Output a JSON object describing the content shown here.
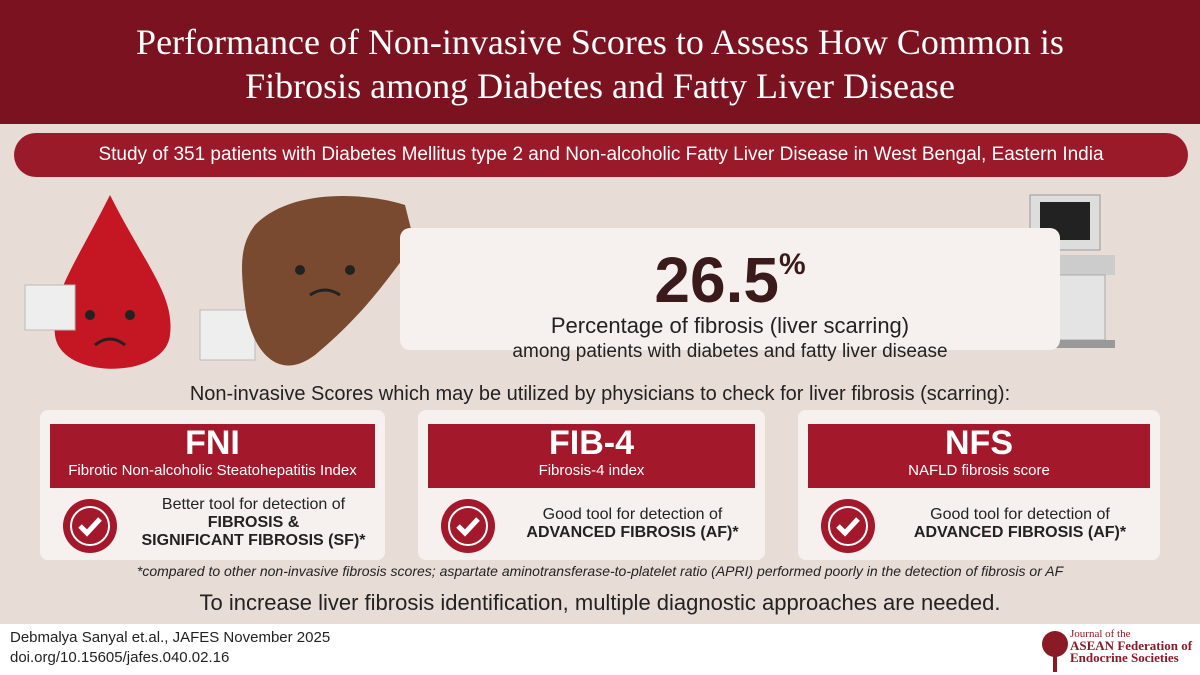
{
  "header": {
    "title_lines": [
      "Performance of Non-invasive Scores to Assess How Common is",
      "Fibrosis among Diabetes and Fatty Liver Disease"
    ]
  },
  "banner": "Study of 351 patients with Diabetes Mellitus type 2 and Non-alcoholic Fatty Liver Disease in West Bengal, Eastern India",
  "stat": {
    "value": "26.5",
    "unit": "%",
    "label": "Percentage of fibrosis (liver scarring)",
    "sublabel": "among patients with diabetes and fatty liver disease"
  },
  "scores_heading": "Non-invasive Scores which may be utilized by physicians to check for liver fibrosis (scarring):",
  "cards": [
    {
      "abbr": "FNI",
      "name": "Fibrotic Non-alcoholic Steatohepatitis Index",
      "desc": "Better tool for detection of",
      "emphasis": [
        "FIBROSIS &",
        "SIGNIFICANT FIBROSIS (SF)*"
      ]
    },
    {
      "abbr": "FIB-4",
      "name": "Fibrosis-4 index",
      "desc": "Good tool for detection of",
      "emphasis": [
        "ADVANCED FIBROSIS (AF)*"
      ]
    },
    {
      "abbr": "NFS",
      "name": "NAFLD fibrosis score",
      "desc": "Good tool for detection of",
      "emphasis": [
        "ADVANCED FIBROSIS (AF)*"
      ]
    }
  ],
  "footnote": "*compared to other non-invasive fibrosis scores; aspartate aminotransferase-to-platelet ratio (APRI) performed poorly in the detection of fibrosis or AF",
  "conclusion": "To increase liver fibrosis identification, multiple diagnostic approaches are needed.",
  "citation": {
    "authors": "Debmalya Sanyal et.al., JAFES November 2025",
    "doi": "doi.org/10.15605/jafes.040.02.16"
  },
  "logo": [
    "Journal of the",
    "ASEAN Federation of",
    "Endocrine Societies"
  ]
}
